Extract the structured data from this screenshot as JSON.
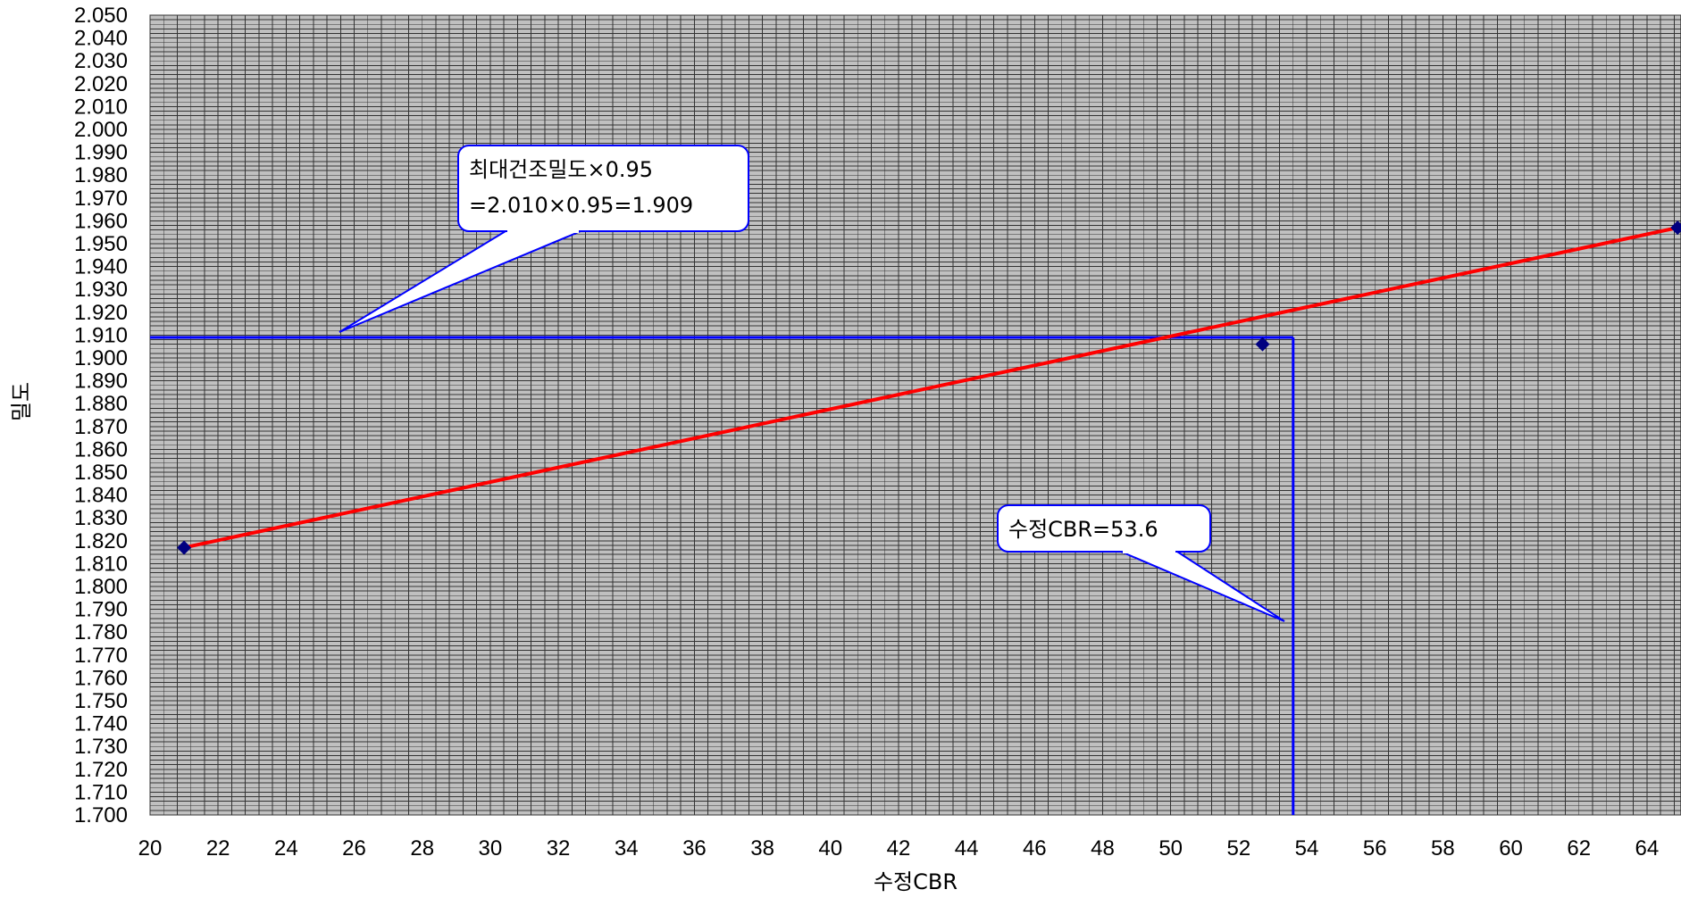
{
  "chart_data": {
    "type": "scatter",
    "xlabel": "수정CBR",
    "ylabel": "밀도",
    "xlim": [
      20,
      65
    ],
    "ylim": [
      1.7,
      2.05
    ],
    "x_ticks": [
      "20",
      "22",
      "24",
      "26",
      "28",
      "30",
      "32",
      "34",
      "36",
      "38",
      "40",
      "42",
      "44",
      "46",
      "48",
      "50",
      "52",
      "54",
      "56",
      "58",
      "60",
      "62",
      "64"
    ],
    "y_ticks": [
      "2.050",
      "2.040",
      "2.030",
      "2.020",
      "2.010",
      "2.000",
      "1.990",
      "1.980",
      "1.970",
      "1.960",
      "1.950",
      "1.940",
      "1.930",
      "1.920",
      "1.910",
      "1.900",
      "1.890",
      "1.880",
      "1.870",
      "1.860",
      "1.850",
      "1.840",
      "1.830",
      "1.820",
      "1.810",
      "1.800",
      "1.790",
      "1.780",
      "1.770",
      "1.760",
      "1.750",
      "1.740",
      "1.730",
      "1.720",
      "1.710",
      "1.700"
    ],
    "grid": true,
    "points": [
      {
        "x": 21.0,
        "y": 1.817
      },
      {
        "x": 52.7,
        "y": 1.906
      },
      {
        "x": 64.9,
        "y": 1.957
      }
    ],
    "points_color": "#000080",
    "fit_line": {
      "x": [
        21.0,
        64.9
      ],
      "y": [
        1.817,
        1.957
      ],
      "color": "#ff0000"
    },
    "reference_lines": {
      "y_value": 1.909,
      "x_value": 53.6,
      "color": "#0000ff"
    },
    "callouts": [
      {
        "lines": [
          "최대건조밀도×0.95",
          "=2.010×0.95=1.909"
        ]
      },
      {
        "lines": [
          "수정CBR=53.6"
        ]
      }
    ]
  },
  "colors": {
    "plot_bg": "#c0c0c0",
    "grid": "#333333",
    "callout_border": "#0000ff",
    "callout_fill": "#ffffff"
  }
}
